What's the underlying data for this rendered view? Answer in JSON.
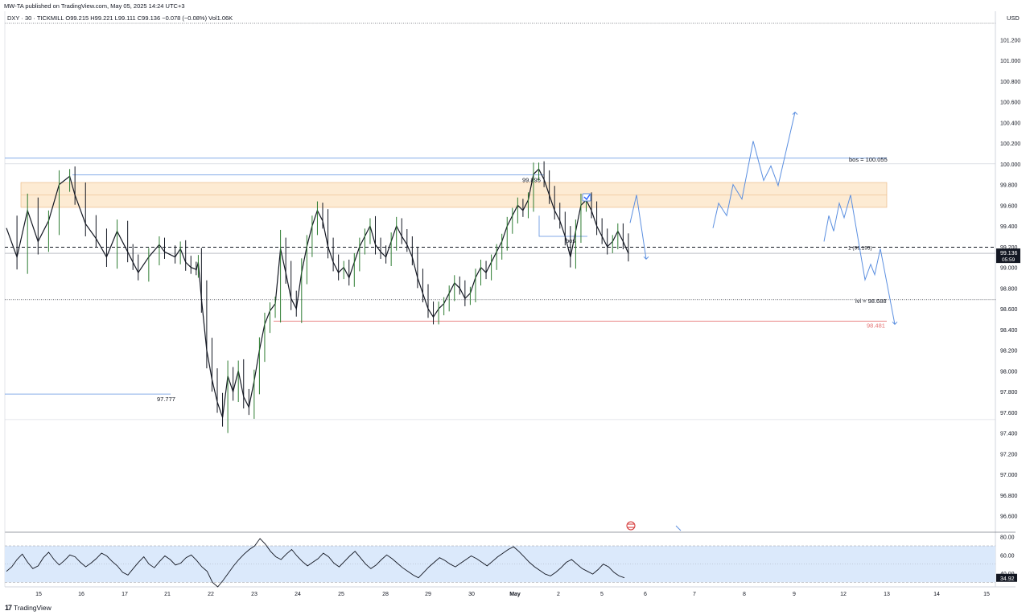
{
  "header": {
    "published": "MW-TA published on TradingView.com, May 05, 2025 14:24 UTC+3",
    "symbol_line": "DXY · 30 · TICKMILL  O99.215  H99.221  L99.111  C99.136  −0.078 (−0.08%)  Vol1.06K"
  },
  "footer": {
    "logo": "17",
    "brand": "TradingView"
  },
  "colors": {
    "up": "#2e7d32",
    "down": "#131722",
    "drawing_blue": "#5b8fe0",
    "support_red": "#e57373",
    "zone_fill": "#fdebd3",
    "rsi_band": "#dbe9fb"
  },
  "chart_data": {
    "type": "line",
    "price_axis": {
      "currency": "USD",
      "ticks": [
        "101.200",
        "101.000",
        "100.800",
        "100.600",
        "100.400",
        "100.200",
        "100.000",
        "99.800",
        "99.600",
        "99.400",
        "99.200",
        "99.000",
        "98.800",
        "98.600",
        "98.400",
        "98.200",
        "98.000",
        "97.800",
        "97.600",
        "97.400",
        "97.200",
        "97.000",
        "96.800",
        "96.600"
      ],
      "ylim": [
        96.45,
        101.35
      ],
      "last_price": "99.136",
      "countdown": "05:59"
    },
    "time_axis": [
      "15",
      "16",
      "17",
      "21",
      "22",
      "23",
      "24",
      "25",
      "28",
      "29",
      "30",
      "May",
      "2",
      "5",
      "6",
      "7",
      "8",
      "9",
      "12",
      "13",
      "14",
      "15"
    ],
    "price_path": [
      [
        0,
        99.38
      ],
      [
        2,
        99.1
      ],
      [
        4,
        99.55
      ],
      [
        6,
        99.25
      ],
      [
        8,
        99.45
      ],
      [
        10,
        99.8
      ],
      [
        12,
        99.88
      ],
      [
        13,
        99.7
      ],
      [
        15,
        99.42
      ],
      [
        17,
        99.28
      ],
      [
        19,
        99.1
      ],
      [
        21,
        99.35
      ],
      [
        23,
        99.15
      ],
      [
        24,
        99.05
      ],
      [
        25,
        98.95
      ],
      [
        27,
        99.1
      ],
      [
        29,
        99.22
      ],
      [
        30,
        99.15
      ],
      [
        32,
        99.1
      ],
      [
        33,
        99.18
      ],
      [
        34,
        99.05
      ],
      [
        35,
        99.0
      ],
      [
        36,
        98.98
      ],
      [
        36,
        98.97
      ],
      [
        36.4,
        99.05
      ],
      [
        37,
        98.7
      ],
      [
        38,
        98.2
      ],
      [
        39,
        97.92
      ],
      [
        40,
        97.7
      ],
      [
        41,
        97.55
      ],
      [
        42,
        97.95
      ],
      [
        43,
        97.8
      ],
      [
        44,
        98.0
      ],
      [
        45,
        97.75
      ],
      [
        46,
        97.65
      ],
      [
        47,
        97.9
      ],
      [
        48,
        98.2
      ],
      [
        49,
        98.45
      ],
      [
        50,
        98.58
      ],
      [
        51,
        98.65
      ],
      [
        52,
        99.18
      ],
      [
        53,
        98.95
      ],
      [
        54,
        98.7
      ],
      [
        55,
        98.6
      ],
      [
        56,
        98.95
      ],
      [
        57,
        99.2
      ],
      [
        58,
        99.4
      ],
      [
        59,
        99.55
      ],
      [
        60,
        99.45
      ],
      [
        61,
        99.2
      ],
      [
        62,
        99.05
      ],
      [
        63,
        98.95
      ],
      [
        64,
        99.0
      ],
      [
        65,
        98.9
      ],
      [
        66,
        99.05
      ],
      [
        67,
        99.2
      ],
      [
        68,
        99.3
      ],
      [
        69,
        99.4
      ],
      [
        70,
        99.22
      ],
      [
        71,
        99.15
      ],
      [
        72,
        99.1
      ],
      [
        73,
        99.25
      ],
      [
        74,
        99.4
      ],
      [
        75,
        99.3
      ],
      [
        76,
        99.22
      ],
      [
        77,
        99.1
      ],
      [
        78,
        98.9
      ],
      [
        79,
        98.75
      ],
      [
        80,
        98.6
      ],
      [
        81,
        98.52
      ],
      [
        82,
        98.6
      ],
      [
        83,
        98.65
      ],
      [
        84,
        98.75
      ],
      [
        85,
        98.85
      ],
      [
        86,
        98.8
      ],
      [
        87,
        98.7
      ],
      [
        88,
        98.75
      ],
      [
        89,
        98.9
      ],
      [
        90,
        99.0
      ],
      [
        91,
        98.95
      ],
      [
        92,
        99.05
      ],
      [
        93,
        99.15
      ],
      [
        94,
        99.25
      ],
      [
        95,
        99.4
      ],
      [
        96,
        99.5
      ],
      [
        97,
        99.6
      ],
      [
        98,
        99.55
      ],
      [
        99,
        99.65
      ],
      [
        100,
        99.9
      ],
      [
        101,
        99.95
      ],
      [
        102,
        99.85
      ],
      [
        103,
        99.7
      ],
      [
        104,
        99.55
      ],
      [
        105,
        99.45
      ],
      [
        106,
        99.3
      ],
      [
        107,
        99.1
      ],
      [
        108,
        99.35
      ],
      [
        109,
        99.6
      ],
      [
        110,
        99.65
      ],
      [
        111,
        99.55
      ],
      [
        112,
        99.4
      ],
      [
        113,
        99.3
      ],
      [
        114,
        99.2
      ],
      [
        115,
        99.25
      ],
      [
        116,
        99.35
      ],
      [
        117,
        99.25
      ],
      [
        118,
        99.136
      ]
    ],
    "levels": [
      {
        "label": "bos = 100.055",
        "value": 100.055
      },
      {
        "label": "1 (99.195)",
        "value": 99.195
      },
      {
        "label": "lvl = 98.688",
        "value": 98.688
      },
      {
        "label": "98.481",
        "value": 98.481
      },
      {
        "label": "99.895",
        "value": 99.895
      },
      {
        "label": "97.777",
        "value": 97.777
      },
      {
        "label": "bos",
        "value": 99.3
      }
    ],
    "zone": {
      "from": 99.58,
      "to": 99.82
    },
    "rsi": {
      "ticks": [
        "80.00",
        "60.00",
        "40.00"
      ],
      "band": [
        70,
        30
      ],
      "last": "34.92",
      "values": [
        42,
        47,
        55,
        61,
        52,
        45,
        48,
        57,
        63,
        55,
        49,
        54,
        60,
        58,
        52,
        47,
        51,
        56,
        62,
        59,
        53,
        48,
        41,
        38,
        45,
        52,
        58,
        50,
        46,
        53,
        59,
        55,
        49,
        51,
        57,
        60,
        54,
        47,
        42,
        30,
        25,
        32,
        40,
        48,
        55,
        61,
        66,
        70,
        78,
        72,
        64,
        58,
        55,
        61,
        66,
        59,
        53,
        48,
        52,
        56,
        62,
        58,
        51,
        47,
        53,
        59,
        64,
        57,
        50,
        45,
        49,
        55,
        60,
        56,
        51,
        46,
        42,
        38,
        35,
        41,
        47,
        52,
        57,
        54,
        50,
        47,
        51,
        55,
        59,
        56,
        52,
        48,
        53,
        58,
        62,
        66,
        69,
        64,
        58,
        52,
        47,
        43,
        39,
        37,
        41,
        46,
        52,
        55,
        50,
        45,
        42,
        39,
        44,
        50,
        47,
        41,
        37,
        35
      ]
    }
  }
}
